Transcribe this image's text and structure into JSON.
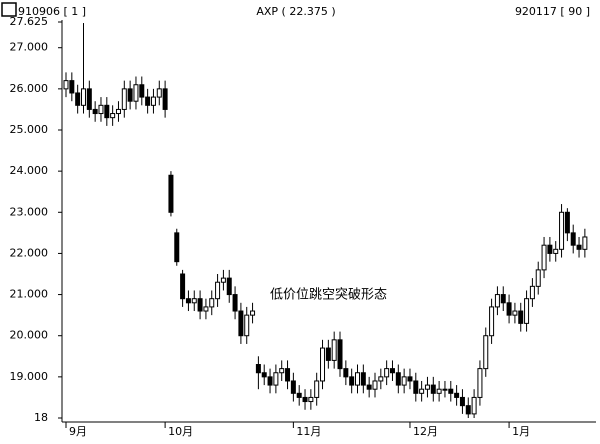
{
  "chart_data": {
    "type": "candlestick",
    "header_left": "910906 [ 1 ]",
    "title": "AXP ( 22.375 )",
    "header_right": "920117 [ 90 ]",
    "annotation": "低价位跳空突破形态",
    "categories": [
      "9月",
      null,
      null,
      null,
      null,
      null,
      null,
      null,
      null,
      null,
      null,
      null,
      null,
      null,
      null,
      null,
      null,
      "10月",
      null,
      null,
      null,
      null,
      null,
      null,
      null,
      null,
      null,
      null,
      null,
      null,
      null,
      null,
      null,
      null,
      null,
      null,
      null,
      null,
      null,
      "11月",
      null,
      null,
      null,
      null,
      null,
      null,
      null,
      null,
      null,
      null,
      null,
      null,
      null,
      null,
      null,
      null,
      null,
      null,
      null,
      "12月",
      null,
      null,
      null,
      null,
      null,
      null,
      null,
      null,
      null,
      null,
      null,
      null,
      null,
      null,
      null,
      null,
      "1月",
      null,
      null,
      null,
      null,
      null,
      null,
      null,
      null,
      null,
      null,
      null,
      null,
      null
    ],
    "open": [
      26.0,
      26.2,
      25.9,
      25.6,
      26.0,
      25.5,
      25.4,
      25.6,
      25.3,
      25.4,
      25.5,
      26.0,
      25.7,
      26.1,
      25.8,
      25.6,
      25.8,
      26.0,
      23.9,
      22.5,
      21.5,
      20.9,
      20.8,
      20.9,
      20.6,
      20.7,
      20.9,
      21.3,
      21.4,
      21.0,
      20.6,
      20.0,
      20.5,
      19.3,
      19.1,
      19.0,
      18.8,
      19.1,
      19.2,
      18.9,
      18.6,
      18.5,
      18.4,
      18.5,
      18.9,
      19.7,
      19.4,
      19.9,
      19.2,
      19.0,
      18.8,
      19.1,
      18.8,
      18.7,
      18.9,
      19.0,
      19.2,
      19.1,
      18.8,
      19.0,
      18.9,
      18.6,
      18.7,
      18.8,
      18.6,
      18.7,
      18.7,
      18.6,
      18.5,
      18.3,
      18.1,
      18.5,
      19.2,
      20.0,
      20.7,
      21.0,
      20.8,
      20.5,
      20.6,
      20.3,
      20.9,
      21.2,
      21.6,
      22.2,
      22.0,
      22.1,
      23.0,
      22.5,
      22.2,
      22.1
    ],
    "high": [
      26.4,
      26.4,
      26.1,
      27.6,
      26.2,
      25.7,
      25.8,
      25.8,
      25.6,
      25.7,
      26.2,
      26.2,
      26.3,
      26.3,
      26.0,
      26.0,
      26.2,
      26.2,
      24.0,
      22.6,
      21.6,
      21.1,
      21.1,
      21.1,
      20.9,
      21.1,
      21.5,
      21.6,
      21.6,
      21.2,
      20.8,
      20.7,
      20.8,
      19.5,
      19.3,
      19.2,
      19.3,
      19.4,
      19.4,
      19.1,
      18.8,
      18.7,
      18.7,
      19.1,
      19.9,
      19.9,
      20.1,
      20.1,
      19.4,
      19.2,
      19.3,
      19.3,
      19.0,
      19.1,
      19.2,
      19.4,
      19.4,
      19.3,
      19.2,
      19.2,
      19.1,
      18.9,
      19.0,
      19.0,
      18.9,
      18.9,
      18.9,
      18.8,
      18.7,
      18.5,
      18.7,
      19.4,
      20.2,
      20.9,
      21.2,
      21.2,
      21.0,
      20.8,
      20.8,
      21.1,
      21.4,
      21.8,
      22.4,
      22.4,
      22.3,
      23.2,
      23.1,
      22.7,
      22.4,
      22.6
    ],
    "low": [
      25.8,
      25.7,
      25.4,
      25.4,
      25.3,
      25.2,
      25.2,
      25.1,
      25.1,
      25.2,
      25.3,
      25.5,
      25.5,
      25.6,
      25.4,
      25.4,
      25.6,
      25.3,
      22.9,
      21.7,
      20.7,
      20.6,
      20.6,
      20.4,
      20.4,
      20.5,
      20.7,
      21.1,
      20.8,
      20.4,
      19.8,
      19.8,
      20.3,
      18.7,
      18.8,
      18.6,
      18.6,
      18.9,
      18.7,
      18.4,
      18.3,
      18.2,
      18.2,
      18.3,
      18.7,
      19.2,
      19.2,
      19.0,
      18.8,
      18.6,
      18.6,
      18.6,
      18.5,
      18.5,
      18.7,
      18.8,
      18.9,
      18.6,
      18.6,
      18.7,
      18.4,
      18.4,
      18.5,
      18.4,
      18.4,
      18.5,
      18.4,
      18.3,
      18.1,
      18.0,
      18.0,
      18.3,
      19.0,
      19.8,
      20.5,
      20.6,
      20.3,
      20.3,
      20.1,
      20.1,
      20.7,
      21.0,
      21.4,
      21.8,
      21.8,
      21.9,
      22.3,
      22.0,
      21.9,
      21.9
    ],
    "close": [
      26.2,
      25.9,
      25.6,
      26.0,
      25.5,
      25.4,
      25.6,
      25.3,
      25.4,
      25.5,
      26.0,
      25.7,
      26.1,
      25.8,
      25.6,
      25.8,
      26.0,
      25.5,
      23.0,
      21.8,
      20.9,
      20.8,
      20.9,
      20.6,
      20.7,
      20.9,
      21.3,
      21.4,
      21.0,
      20.6,
      20.0,
      20.5,
      20.6,
      19.1,
      19.0,
      18.8,
      19.1,
      19.2,
      18.9,
      18.6,
      18.5,
      18.4,
      18.5,
      18.9,
      19.7,
      19.4,
      19.9,
      19.2,
      19.0,
      18.8,
      19.1,
      18.8,
      18.7,
      18.9,
      19.0,
      19.2,
      19.1,
      18.8,
      19.0,
      18.9,
      18.6,
      18.7,
      18.8,
      18.6,
      18.7,
      18.7,
      18.6,
      18.5,
      18.3,
      18.1,
      18.5,
      19.2,
      20.0,
      20.7,
      21.0,
      20.8,
      20.5,
      20.6,
      20.3,
      20.9,
      21.2,
      21.6,
      22.2,
      22.0,
      22.1,
      23.0,
      22.5,
      22.2,
      22.1,
      22.4
    ],
    "ylim": [
      18,
      27.625
    ],
    "yticks": [
      18,
      {
        "value": 19,
        "label": "19.000"
      },
      {
        "value": 20,
        "label": "20.000"
      },
      {
        "value": 21,
        "label": "21.000"
      },
      {
        "value": 22,
        "label": "22.000"
      },
      {
        "value": 23,
        "label": "23.000"
      },
      {
        "value": 24,
        "label": "24.000"
      },
      {
        "value": 25,
        "label": "25.000"
      },
      {
        "value": 26,
        "label": "26.000"
      },
      {
        "value": 27,
        "label": "27.000"
      },
      27.625
    ],
    "color": "#000000"
  }
}
